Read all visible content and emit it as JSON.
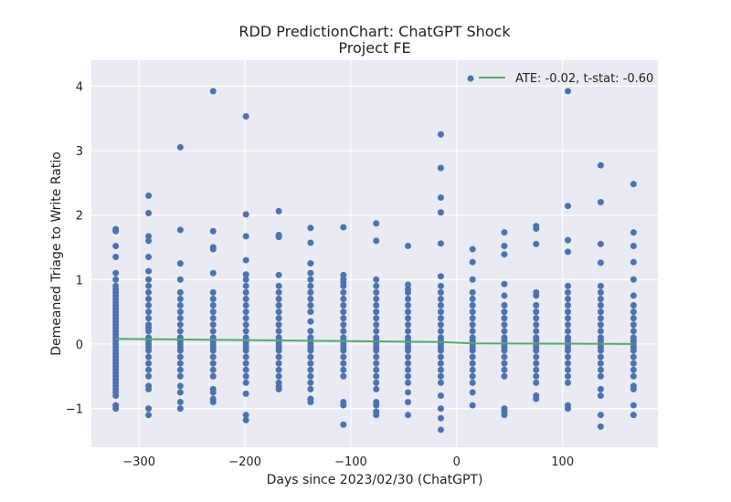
{
  "chart_data": {
    "type": "scatter",
    "title": "RDD PredictionChart: ChatGPT Shock",
    "subtitle": "Project FE",
    "xlabel": "Days since 2023/02/30 (ChatGPT)",
    "ylabel": "Demeaned Triage to Write Ratio",
    "xlim": [
      -345,
      190
    ],
    "ylim": [
      -1.6,
      4.4
    ],
    "xticks": [
      -300,
      -200,
      -100,
      0,
      100
    ],
    "xtick_labels": [
      "−300",
      "−200",
      "−100",
      "0",
      "100"
    ],
    "yticks": [
      -1,
      0,
      1,
      2,
      3,
      4
    ],
    "ytick_labels": [
      "−1",
      "0",
      "1",
      "2",
      "3",
      "4"
    ],
    "grid": true,
    "legend_position": "upper-right",
    "legend_label": "ATE: -0.02, t-stat: -0.60",
    "colors": {
      "points": "#4c72b0",
      "fit_line": "#55a868",
      "plot_background": "#eaeaf2",
      "grid": "#ffffff"
    },
    "fit_line": {
      "x": [
        -322,
        -15,
        15,
        167
      ],
      "y": [
        0.08,
        0.03,
        0.01,
        0.0
      ]
    },
    "scatter_groups": [
      {
        "x": -322,
        "y": [
          1.78,
          1.75,
          1.52,
          1.35,
          1.1,
          1.0,
          0.9,
          0.85,
          0.8,
          0.75,
          0.7,
          0.65,
          0.6,
          0.55,
          0.5,
          0.45,
          0.4,
          0.35,
          0.3,
          0.25,
          0.2,
          0.15,
          0.1,
          0.05,
          0.0,
          -0.05,
          -0.1,
          -0.15,
          -0.2,
          -0.25,
          -0.3,
          -0.35,
          -0.4,
          -0.45,
          -0.5,
          -0.55,
          -0.6,
          -0.65,
          -0.7,
          -0.75,
          -0.8,
          -0.95,
          -1.0
        ]
      },
      {
        "x": -291,
        "y": [
          2.3,
          2.03,
          1.67,
          1.6,
          1.35,
          1.13,
          1.0,
          0.9,
          0.8,
          0.7,
          0.6,
          0.5,
          0.4,
          0.3,
          0.25,
          0.2,
          0.1,
          0.05,
          0.0,
          -0.05,
          -0.1,
          -0.2,
          -0.3,
          -0.4,
          -0.5,
          -0.65,
          -0.7,
          -1.0,
          -1.1
        ]
      },
      {
        "x": -261,
        "y": [
          3.05,
          1.77,
          1.25,
          1.0,
          0.8,
          0.7,
          0.6,
          0.5,
          0.4,
          0.3,
          0.2,
          0.1,
          0.05,
          0.0,
          -0.05,
          -0.1,
          -0.2,
          -0.3,
          -0.4,
          -0.5,
          -0.65,
          -0.75,
          -0.9,
          -1.0
        ]
      },
      {
        "x": -230,
        "y": [
          3.92,
          1.75,
          1.5,
          1.47,
          1.1,
          0.8,
          0.7,
          0.6,
          0.5,
          0.4,
          0.3,
          0.2,
          0.1,
          0.05,
          0.0,
          -0.05,
          -0.1,
          -0.2,
          -0.3,
          -0.4,
          -0.5,
          -0.7,
          -0.75,
          -0.85,
          -0.9
        ]
      },
      {
        "x": -199,
        "y": [
          3.53,
          2.01,
          1.67,
          1.3,
          1.08,
          1.0,
          0.9,
          0.8,
          0.7,
          0.6,
          0.5,
          0.4,
          0.3,
          0.2,
          0.1,
          0.05,
          0.0,
          -0.05,
          -0.1,
          -0.2,
          -0.3,
          -0.4,
          -0.5,
          -0.6,
          -0.77,
          -1.1,
          -1.18
        ]
      },
      {
        "x": -168,
        "y": [
          2.06,
          1.69,
          1.66,
          1.07,
          0.9,
          0.8,
          0.7,
          0.6,
          0.5,
          0.4,
          0.3,
          0.2,
          0.1,
          0.05,
          0.0,
          -0.05,
          -0.1,
          -0.2,
          -0.3,
          -0.4,
          -0.5,
          -0.6,
          -0.66,
          -0.7
        ]
      },
      {
        "x": -138,
        "y": [
          1.8,
          1.57,
          1.25,
          1.1,
          1.0,
          0.9,
          0.8,
          0.7,
          0.6,
          0.5,
          0.35,
          0.2,
          0.1,
          0.05,
          0.0,
          -0.05,
          -0.1,
          -0.2,
          -0.3,
          -0.4,
          -0.5,
          -0.6,
          -0.7,
          -0.85,
          -0.9
        ]
      },
      {
        "x": -107,
        "y": [
          1.81,
          1.07,
          1.0,
          0.95,
          0.9,
          0.8,
          0.7,
          0.6,
          0.5,
          0.4,
          0.3,
          0.2,
          0.1,
          0.05,
          0.0,
          -0.05,
          -0.1,
          -0.2,
          -0.3,
          -0.4,
          -0.5,
          -0.9,
          -0.95,
          -1.25
        ]
      },
      {
        "x": -76,
        "y": [
          1.87,
          1.6,
          1.0,
          0.9,
          0.8,
          0.7,
          0.6,
          0.5,
          0.4,
          0.3,
          0.2,
          0.1,
          0.05,
          0.0,
          -0.05,
          -0.1,
          -0.2,
          -0.3,
          -0.4,
          -0.5,
          -0.6,
          -0.7,
          -0.9,
          -0.95,
          -1.05,
          -1.1
        ]
      },
      {
        "x": -46,
        "y": [
          1.52,
          0.92,
          0.85,
          0.8,
          0.7,
          0.6,
          0.5,
          0.4,
          0.3,
          0.2,
          0.1,
          0.05,
          0.0,
          -0.05,
          -0.1,
          -0.2,
          -0.3,
          -0.4,
          -0.5,
          -0.6,
          -0.75,
          -0.9,
          -1.1
        ]
      },
      {
        "x": -15,
        "y": [
          3.25,
          2.73,
          2.27,
          2.04,
          1.56,
          1.05,
          0.9,
          0.8,
          0.7,
          0.6,
          0.5,
          0.4,
          0.3,
          0.2,
          0.1,
          0.05,
          0.0,
          -0.05,
          -0.1,
          -0.2,
          -0.3,
          -0.4,
          -0.5,
          -0.6,
          -0.8,
          -1.0,
          -1.15,
          -1.33
        ]
      },
      {
        "x": 15,
        "y": [
          1.47,
          1.27,
          1.0,
          0.8,
          0.7,
          0.6,
          0.5,
          0.4,
          0.3,
          0.2,
          0.1,
          0.05,
          0.0,
          -0.05,
          -0.1,
          -0.2,
          -0.3,
          -0.4,
          -0.5,
          -0.6,
          -0.75,
          -0.95
        ]
      },
      {
        "x": 45,
        "y": [
          1.73,
          1.52,
          1.39,
          0.93,
          0.75,
          0.6,
          0.5,
          0.4,
          0.3,
          0.2,
          0.1,
          0.05,
          0.0,
          -0.05,
          -0.1,
          -0.2,
          -0.3,
          -0.4,
          -0.5,
          -1.0,
          -1.05,
          -1.1
        ]
      },
      {
        "x": 75,
        "y": [
          1.83,
          1.79,
          1.55,
          0.8,
          0.75,
          0.6,
          0.5,
          0.4,
          0.3,
          0.2,
          0.1,
          0.05,
          0.0,
          -0.05,
          -0.1,
          -0.2,
          -0.3,
          -0.4,
          -0.5,
          -0.6,
          -0.8,
          -0.85
        ]
      },
      {
        "x": 105,
        "y": [
          3.92,
          2.14,
          1.61,
          1.43,
          0.9,
          0.8,
          0.7,
          0.6,
          0.5,
          0.4,
          0.3,
          0.2,
          0.1,
          0.05,
          0.0,
          -0.05,
          -0.1,
          -0.2,
          -0.3,
          -0.4,
          -0.5,
          -0.6,
          -0.95,
          -1.0
        ]
      },
      {
        "x": 136,
        "y": [
          2.77,
          2.2,
          1.55,
          1.26,
          0.9,
          0.8,
          0.7,
          0.6,
          0.5,
          0.4,
          0.3,
          0.2,
          0.1,
          0.05,
          0.0,
          -0.05,
          -0.1,
          -0.2,
          -0.3,
          -0.4,
          -0.5,
          -0.7,
          -0.8,
          -1.1,
          -1.28
        ]
      },
      {
        "x": 167,
        "y": [
          2.48,
          1.73,
          1.52,
          1.27,
          1.0,
          0.75,
          0.6,
          0.5,
          0.4,
          0.3,
          0.2,
          0.1,
          0.05,
          0.0,
          -0.05,
          -0.1,
          -0.2,
          -0.3,
          -0.4,
          -0.5,
          -0.65,
          -0.7,
          -0.95,
          -1.1
        ]
      }
    ]
  }
}
